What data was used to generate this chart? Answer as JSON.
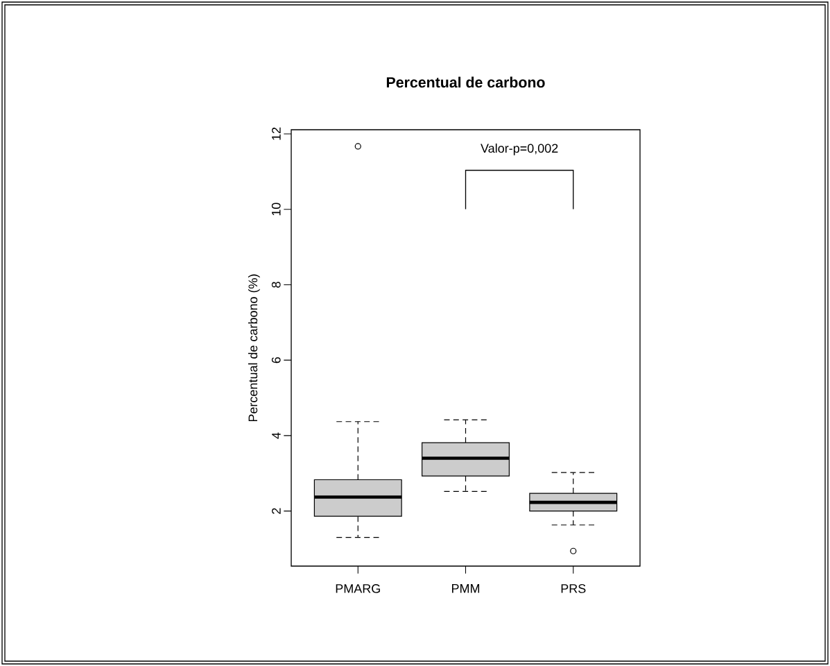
{
  "chart_data": {
    "type": "box",
    "title": "Percentual de carbono",
    "ylabel": "Percentual de carbono (%)",
    "categories": [
      "PMARG",
      "PMM",
      "PRS"
    ],
    "series": [
      {
        "color": "#cccccc",
        "boxes": [
          {
            "low": 1.3,
            "q1": 1.86,
            "median": 2.37,
            "q3": 2.83,
            "high": 4.37,
            "outliers": [
              11.67
            ]
          },
          {
            "low": 2.52,
            "q1": 2.93,
            "median": 3.4,
            "q3": 3.81,
            "high": 4.42
          },
          {
            "low": 1.63,
            "q1": 2.0,
            "median": 2.23,
            "q3": 2.47,
            "high": 3.02,
            "outliers": [
              0.94
            ]
          }
        ]
      }
    ],
    "ylim": [
      0.54,
      12.11
    ],
    "yticks": [
      2,
      4,
      6,
      8,
      10,
      12
    ],
    "annotations": [
      "Valor-p=0,002"
    ]
  }
}
